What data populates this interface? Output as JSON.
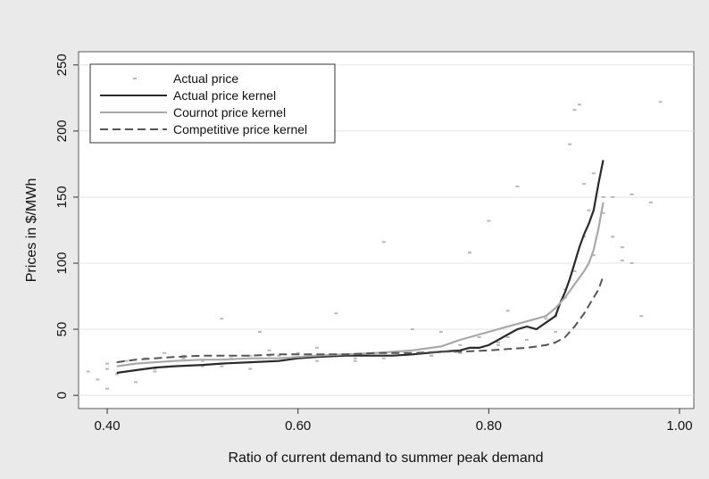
{
  "chart_data": {
    "type": "scatter",
    "title": "",
    "xlabel": "Ratio of current demand to summer peak demand",
    "ylabel": "Prices in $/MWh",
    "xlim": [
      0.37,
      1.015
    ],
    "ylim": [
      -10,
      260
    ],
    "x_ticks": [
      0.4,
      0.6,
      0.8,
      1.0
    ],
    "x_tick_labels": [
      "0.40",
      "0.60",
      "0.80",
      "1.00"
    ],
    "y_ticks": [
      0,
      50,
      100,
      150,
      200,
      250
    ],
    "y_tick_labels": [
      "0",
      "50",
      "100",
      "150",
      "200",
      "250"
    ],
    "grid": "horizontal",
    "legend_position": "top-left",
    "series": [
      {
        "name": "Actual price",
        "style": "points",
        "color": "#b8b8b8",
        "x": [
          0.38,
          0.39,
          0.4,
          0.41,
          0.42,
          0.43,
          0.44,
          0.45,
          0.46,
          0.47,
          0.48,
          0.5,
          0.52,
          0.53,
          0.55,
          0.56,
          0.57,
          0.58,
          0.6,
          0.62,
          0.63,
          0.64,
          0.66,
          0.68,
          0.69,
          0.7,
          0.72,
          0.74,
          0.75,
          0.77,
          0.78,
          0.79,
          0.8,
          0.81,
          0.82,
          0.83,
          0.84,
          0.85,
          0.86,
          0.87,
          0.88,
          0.885,
          0.89,
          0.895,
          0.9,
          0.905,
          0.91,
          0.92,
          0.93,
          0.94,
          0.95,
          0.97,
          0.98,
          0.4,
          0.43,
          0.48,
          0.52,
          0.55,
          0.62,
          0.69,
          0.77,
          0.82,
          0.86,
          0.88,
          0.89,
          0.91,
          0.93,
          0.95,
          0.96,
          0.4,
          0.45,
          0.5,
          0.57,
          0.66,
          0.74,
          0.81,
          0.87,
          0.9,
          0.92,
          0.94
        ],
        "y": [
          18,
          12,
          20,
          16,
          26,
          24,
          28,
          20,
          32,
          22,
          30,
          26,
          58,
          28,
          30,
          48,
          34,
          30,
          32,
          36,
          30,
          62,
          28,
          30,
          116,
          32,
          50,
          30,
          48,
          38,
          108,
          44,
          132,
          40,
          64,
          158,
          42,
          50,
          58,
          60,
          74,
          190,
          216,
          220,
          160,
          140,
          106,
          150,
          150,
          112,
          152,
          146,
          222,
          5,
          10,
          28,
          22,
          20,
          26,
          28,
          32,
          44,
          60,
          80,
          94,
          168,
          120,
          100,
          60,
          24,
          18,
          22,
          30,
          26,
          30,
          38,
          48,
          120,
          138,
          102
        ]
      },
      {
        "name": "Actual price kernel",
        "style": "solid",
        "color": "#2a2a2a",
        "x": [
          0.41,
          0.43,
          0.45,
          0.47,
          0.5,
          0.52,
          0.55,
          0.58,
          0.6,
          0.62,
          0.65,
          0.68,
          0.7,
          0.72,
          0.75,
          0.77,
          0.78,
          0.79,
          0.8,
          0.81,
          0.82,
          0.83,
          0.84,
          0.85,
          0.86,
          0.87,
          0.875,
          0.88,
          0.885,
          0.89,
          0.895,
          0.9,
          0.905,
          0.91,
          0.915,
          0.92
        ],
        "y": [
          17,
          19,
          21,
          22,
          23,
          24,
          25,
          26,
          28,
          29,
          30,
          30,
          30,
          31,
          33,
          34,
          36,
          36,
          38,
          42,
          46,
          50,
          52,
          50,
          55,
          60,
          70,
          78,
          88,
          100,
          112,
          122,
          130,
          140,
          160,
          178
        ]
      },
      {
        "name": "Cournot price kernel",
        "style": "solid",
        "color": "#a9a9a9",
        "x": [
          0.41,
          0.43,
          0.45,
          0.47,
          0.5,
          0.52,
          0.55,
          0.58,
          0.6,
          0.62,
          0.65,
          0.68,
          0.7,
          0.72,
          0.75,
          0.77,
          0.78,
          0.79,
          0.8,
          0.81,
          0.82,
          0.83,
          0.84,
          0.85,
          0.86,
          0.87,
          0.88,
          0.89,
          0.9,
          0.905,
          0.91,
          0.915,
          0.92
        ],
        "y": [
          22,
          24,
          25,
          26,
          27,
          27,
          28,
          28,
          29,
          30,
          31,
          32,
          33,
          34,
          37,
          42,
          44,
          46,
          48,
          50,
          52,
          54,
          56,
          58,
          60,
          66,
          74,
          84,
          94,
          100,
          110,
          126,
          146
        ]
      },
      {
        "name": "Competitive price kernel",
        "style": "dashed",
        "color": "#555555",
        "x": [
          0.41,
          0.43,
          0.45,
          0.47,
          0.5,
          0.52,
          0.55,
          0.58,
          0.6,
          0.62,
          0.65,
          0.68,
          0.7,
          0.72,
          0.75,
          0.77,
          0.8,
          0.82,
          0.84,
          0.86,
          0.87,
          0.88,
          0.89,
          0.9,
          0.91,
          0.915,
          0.92
        ],
        "y": [
          25,
          27,
          28,
          29,
          30,
          30,
          30,
          31,
          31,
          31,
          31,
          32,
          32,
          32,
          33,
          33,
          34,
          35,
          36,
          38,
          40,
          44,
          52,
          62,
          74,
          80,
          90
        ]
      }
    ]
  }
}
